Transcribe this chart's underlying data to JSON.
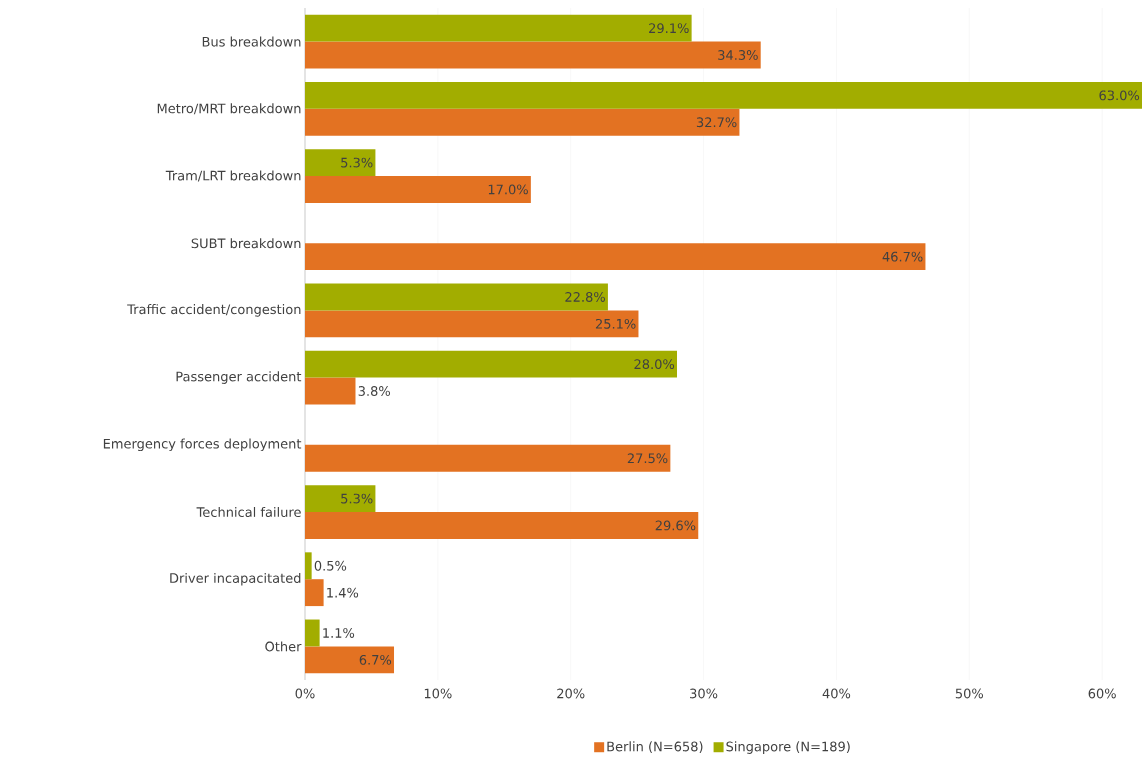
{
  "chart_data": {
    "type": "bar",
    "orientation": "horizontal",
    "categories": [
      "Bus breakdown",
      "Metro/MRT breakdown",
      "Tram/LRT breakdown",
      "SUBT breakdown",
      "Traffic accident/congestion",
      "Passenger accident",
      "Emergency forces deployment",
      "Technical failure",
      "Driver incapacitated",
      "Other"
    ],
    "series": [
      {
        "name": "Berlin (N=658)",
        "color": "#e37222",
        "values": [
          34.3,
          32.7,
          17.0,
          46.7,
          25.1,
          3.8,
          27.5,
          29.6,
          1.4,
          6.7
        ],
        "value_labels": [
          "34.3%",
          "32.7%",
          "17.0%",
          "46.7%",
          "25.1%",
          "3.8%",
          "27.5%",
          "29.6%",
          "1.4%",
          "6.7%"
        ]
      },
      {
        "name": "Singapore (N=189)",
        "color": "#a2ad00",
        "values": [
          29.1,
          63.0,
          5.3,
          null,
          22.8,
          28.0,
          null,
          5.3,
          0.5,
          1.1
        ],
        "value_labels": [
          "29.1%",
          "63.0%",
          "5.3%",
          null,
          "22.8%",
          "28.0%",
          null,
          "5.3%",
          "0.5%",
          "1.1%"
        ]
      }
    ],
    "xlim": [
      0,
      63
    ],
    "xticks": [
      {
        "value": 0,
        "label": "0%"
      },
      {
        "value": 10,
        "label": "10%"
      },
      {
        "value": 20,
        "label": "20%"
      },
      {
        "value": 30,
        "label": "30%"
      },
      {
        "value": 40,
        "label": "40%"
      },
      {
        "value": 50,
        "label": "50%"
      },
      {
        "value": 60,
        "label": "60%"
      }
    ],
    "grid": "x",
    "legend": "bottom"
  }
}
